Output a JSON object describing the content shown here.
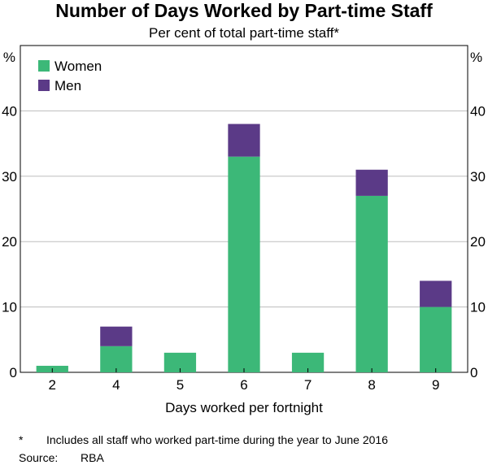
{
  "title": "Number of Days Worked by Part-time Staff",
  "subtitle": "Per cent of total part-time staff*",
  "footnote": {
    "mark": "*",
    "text": "Includes all staff who worked part-time during the year to June 2016"
  },
  "source": {
    "label": "Source:",
    "value": "RBA"
  },
  "colors": {
    "women": "#3cb878",
    "men": "#5b3a87",
    "grid": "#bdbdbd",
    "axis": "#000000"
  },
  "chart_data": {
    "type": "bar",
    "stacked": true,
    "categories": [
      "2",
      "4",
      "5",
      "6",
      "7",
      "8",
      "9"
    ],
    "series": [
      {
        "name": "Women",
        "values": [
          1,
          4,
          3,
          33,
          3,
          27,
          10
        ]
      },
      {
        "name": "Men",
        "values": [
          0,
          3,
          0,
          5,
          0,
          4,
          4
        ]
      }
    ],
    "xlabel": "Days worked per fortnight",
    "ylabel_left": "%",
    "ylabel_right": "%",
    "ylim": [
      0,
      50
    ],
    "yticks": [
      0,
      10,
      20,
      30,
      40
    ],
    "grid": true,
    "legend_position": "top-left"
  }
}
